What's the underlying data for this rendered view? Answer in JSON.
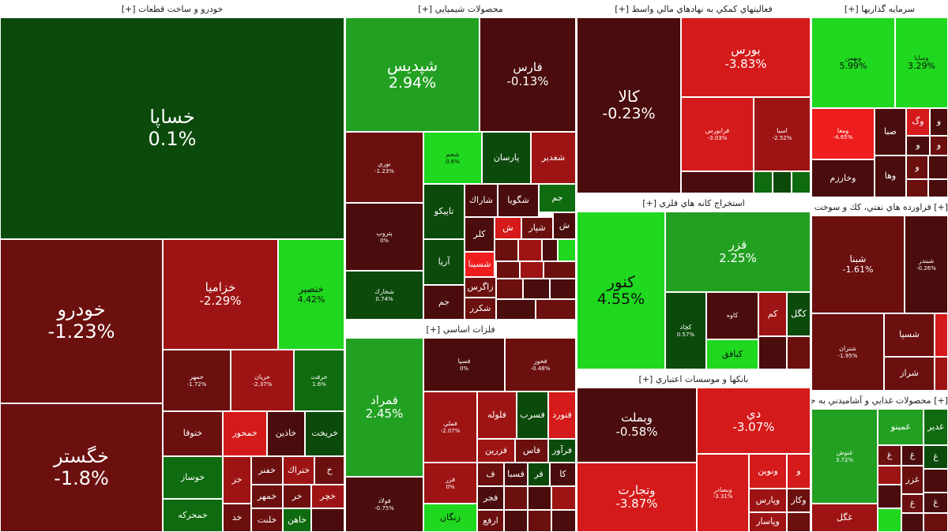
{
  "sectors": {
    "auto": {
      "title": "خودرو و ساخت قطعات [+]"
    },
    "chem": {
      "title": "محصولات شيميايي [+]"
    },
    "fin": {
      "title": "فعاليتهاي كمكي به نهادهاي مالي واسط [+]"
    },
    "invest": {
      "title": "سرمايه گذاريها [+]"
    },
    "metal": {
      "title": "فلزات اساسي [+]"
    },
    "mining": {
      "title": "استخراج كانه هاي فلزي [+]"
    },
    "oil": {
      "title": "[+] فراورده هاي نفتي، كك و سوخت هسته اي"
    },
    "bank": {
      "title": "بانكها و موسسات اعتباري [+]"
    },
    "food": {
      "title": "[+] محصولات غذايي و آشاميدني به جز قند و"
    }
  },
  "tiles": {
    "khesapa": {
      "name": "خساپا",
      "value": "0.1%"
    },
    "khodro": {
      "name": "خودرو",
      "value": "-1.23%"
    },
    "khegostar": {
      "name": "خگستر",
      "value": "-1.8%"
    },
    "khezamia": {
      "name": "خزاميا",
      "value": "-2.29%"
    },
    "khensir": {
      "name": "خنصير",
      "value": "4.42%"
    },
    "khomehr": {
      "name": "خمهر",
      "value": "-1.72%"
    },
    "kheryan": {
      "name": "خريان",
      "value": "-2.37%"
    },
    "kheref": {
      "name": "خرفت",
      "value": "1.6%"
    },
    "khetoqa": {
      "name": "ختوقا"
    },
    "khemehvar": {
      "name": "خمحور"
    },
    "khazin": {
      "name": "خاذين"
    },
    "kheryekht": {
      "name": "خريخت"
    },
    "khosaz": {
      "name": "خوساز"
    },
    "khez": {
      "name": "خز"
    },
    "khefanar": {
      "name": "خفنر"
    },
    "khetrak": {
      "name": "ختراك"
    },
    "kheaux1": {
      "name": "خ"
    },
    "khemhr": {
      "name": "خمهر"
    },
    "khr": {
      "name": "خر"
    },
    "khchr": {
      "name": "خچر"
    },
    "khemrakhe": {
      "name": "خمحركه"
    },
    "khd": {
      "name": "خد"
    },
    "kheltot": {
      "name": "خلنت"
    },
    "khahen": {
      "name": "خاهن"
    },
    "shepdis": {
      "name": "شپديس",
      "value": "2.94%"
    },
    "fars": {
      "name": "فارس",
      "value": "-0.13%"
    },
    "nouri": {
      "name": "نوري",
      "value": "-1.23%"
    },
    "shjam": {
      "name": "شجم",
      "value": "0.6%"
    },
    "parsan": {
      "name": "پارسان"
    },
    "sheghdir": {
      "name": "شغدير"
    },
    "pardis": {
      "name": "پتروپ",
      "value": "0%"
    },
    "tapiko": {
      "name": "تاپيكو"
    },
    "sharak": {
      "name": "شاراك"
    },
    "shegoya": {
      "name": "شگويا"
    },
    "jam": {
      "name": "جم"
    },
    "kala2": {
      "name": "كلر"
    },
    "shl": {
      "name": "ش"
    },
    "shpar": {
      "name": "شپار"
    },
    "shm": {
      "name": "ش"
    },
    "arya": {
      "name": "آريا"
    },
    "shsina": {
      "name": "شسينا"
    },
    "zagros": {
      "name": "زاگرس"
    },
    "shekar": {
      "name": "شكرر"
    },
    "jam2": {
      "name": "جم"
    },
    "shkh": {
      "name": "شخارك",
      "value": "0.74%"
    },
    "kala": {
      "name": "كالا",
      "value": "-0.23%"
    },
    "bourse": {
      "name": "بورس",
      "value": "-3.83%"
    },
    "farabourse": {
      "name": "فرابورس",
      "value": "-3.03%"
    },
    "asm": {
      "name": "اسيا",
      "value": "-2.52%"
    },
    "vbahman": {
      "name": "وبهمن",
      "value": "5.99%"
    },
    "vasaya": {
      "name": "وساپا",
      "value": "3.29%"
    },
    "vog": {
      "name": "وگ"
    },
    "v2": {
      "name": "و"
    },
    "vmay": {
      "name": "ومعا",
      "value": "-4.65%"
    },
    "saba": {
      "name": "صبا"
    },
    "v3": {
      "name": "و"
    },
    "v4": {
      "name": "و"
    },
    "vkharazm": {
      "name": "وخارزم"
    },
    "vha": {
      "name": "وها"
    },
    "v5": {
      "name": "و"
    },
    "femerad": {
      "name": "فمراد",
      "value": "2.45%"
    },
    "fsepaha": {
      "name": "فسپا",
      "value": "0%"
    },
    "fkhoz": {
      "name": "فخوز",
      "value": "-0.48%"
    },
    "femli": {
      "name": "فملي",
      "value": "-2.07%"
    },
    "flole": {
      "name": "فلوله"
    },
    "fsarb": {
      "name": "فسرب"
    },
    "fnourd": {
      "name": "فنورد"
    },
    "fzarin": {
      "name": "فزرين"
    },
    "fas": {
      "name": "فاس"
    },
    "faravar": {
      "name": "فرآور"
    },
    "fzar": {
      "name": "فزر",
      "value": "0%"
    },
    "ff": {
      "name": "ف"
    },
    "fsaba": {
      "name": "فسبا"
    },
    "fra": {
      "name": "فر"
    },
    "fka": {
      "name": "كا"
    },
    "foulad": {
      "name": "فولاد",
      "value": "-0.75%"
    },
    "fjar": {
      "name": "فجر"
    },
    "zangan": {
      "name": "زنگان"
    },
    "farfa": {
      "name": "ارفع"
    },
    "kenur": {
      "name": "كنور",
      "value": "4.55%"
    },
    "fozar": {
      "name": "فزر",
      "value": "2.25%"
    },
    "kgol": {
      "name": "كگل"
    },
    "kchad": {
      "name": "كچاد",
      "value": "0.57%"
    },
    "kmes": {
      "name": "كاوه"
    },
    "kam": {
      "name": "كم"
    },
    "kabafaq": {
      "name": "كبافق"
    },
    "shebna": {
      "name": "شبنا",
      "value": "-1.61%"
    },
    "shebandar": {
      "name": "شبندر",
      "value": "-0.26%"
    },
    "shtran": {
      "name": "شتران",
      "value": "-1.95%"
    },
    "shsepa": {
      "name": "شسپا"
    },
    "shiraz": {
      "name": "شراز"
    },
    "vbemellat": {
      "name": "وبملت",
      "value": "-0.58%"
    },
    "di": {
      "name": "دي",
      "value": "-3.07%"
    },
    "vtejarat": {
      "name": "وتجارت",
      "value": "-3.87%"
    },
    "vsader": {
      "name": "وبصادر",
      "value": "-3.31%"
    },
    "vnovin": {
      "name": "ونوين"
    },
    "vpars": {
      "name": "وپارس"
    },
    "vpasar": {
      "name": "وپاسار"
    },
    "vay": {
      "name": "و"
    },
    "vkh": {
      "name": "وكار"
    },
    "ghgol": {
      "name": "غگل"
    },
    "ghenoosh": {
      "name": "غنوش",
      "value": "3.72%"
    },
    "ghemino": {
      "name": "غمينو"
    },
    "ghadir": {
      "name": "غدير"
    },
    "ghazar": {
      "name": "غزر"
    },
    "gh1": {
      "name": "غ"
    },
    "gh2": {
      "name": "غ"
    },
    "gh3": {
      "name": "غ"
    },
    "gh4": {
      "name": "غ"
    },
    "gh5": {
      "name": "غ"
    }
  },
  "colors": {
    "strong_green": "#1fd81f",
    "green": "#22a022",
    "dark_green": "#0f6b0f",
    "darker_green": "#0c4a0c",
    "dark_red": "#4a0c0c",
    "maroon": "#6b0f0f",
    "red": "#9e1414",
    "bright_red": "#d41a1a",
    "strong_red": "#ee1e1e"
  }
}
